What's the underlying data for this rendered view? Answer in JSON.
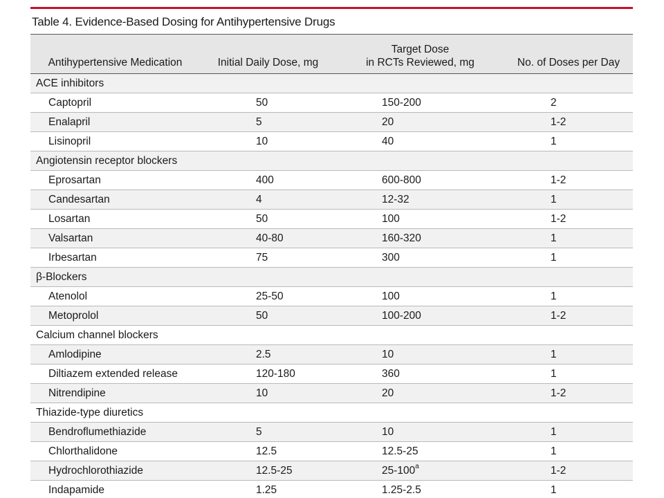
{
  "table": {
    "title": "Table 4. Evidence-Based Dosing for Antihypertensive Drugs",
    "headers": {
      "medication": "Antihypertensive Medication",
      "initial_dose": "Initial Daily Dose, mg",
      "target_dose_line1": "Target Dose",
      "target_dose_line2": "in RCTs Reviewed, mg",
      "doses_per_day": "No. of Doses per Day"
    },
    "categories": [
      {
        "name": "ACE inhibitors",
        "drugs": [
          {
            "name": "Captopril",
            "initial": "50",
            "target": "150-200",
            "footnote": "",
            "doses": "2"
          },
          {
            "name": "Enalapril",
            "initial": "5",
            "target": "20",
            "footnote": "",
            "doses": "1-2"
          },
          {
            "name": "Lisinopril",
            "initial": "10",
            "target": "40",
            "footnote": "",
            "doses": "1"
          }
        ]
      },
      {
        "name": "Angiotensin receptor blockers",
        "drugs": [
          {
            "name": "Eprosartan",
            "initial": "400",
            "target": "600-800",
            "footnote": "",
            "doses": "1-2"
          },
          {
            "name": "Candesartan",
            "initial": "4",
            "target": "12-32",
            "footnote": "",
            "doses": "1"
          },
          {
            "name": "Losartan",
            "initial": "50",
            "target": "100",
            "footnote": "",
            "doses": "1-2"
          },
          {
            "name": "Valsartan",
            "initial": "40-80",
            "target": "160-320",
            "footnote": "",
            "doses": "1"
          },
          {
            "name": "Irbesartan",
            "initial": "75",
            "target": "300",
            "footnote": "",
            "doses": "1"
          }
        ]
      },
      {
        "name": "β-Blockers",
        "drugs": [
          {
            "name": "Atenolol",
            "initial": "25-50",
            "target": "100",
            "footnote": "",
            "doses": "1"
          },
          {
            "name": "Metoprolol",
            "initial": "50",
            "target": "100-200",
            "footnote": "",
            "doses": "1-2"
          }
        ]
      },
      {
        "name": "Calcium channel blockers",
        "drugs": [
          {
            "name": "Amlodipine",
            "initial": "2.5",
            "target": "10",
            "footnote": "",
            "doses": "1"
          },
          {
            "name": "Diltiazem extended release",
            "initial": "120-180",
            "target": "360",
            "footnote": "",
            "doses": "1"
          },
          {
            "name": "Nitrendipine",
            "initial": "10",
            "target": "20",
            "footnote": "",
            "doses": "1-2"
          }
        ]
      },
      {
        "name": "Thiazide-type diuretics",
        "drugs": [
          {
            "name": "Bendroflumethiazide",
            "initial": "5",
            "target": "10",
            "footnote": "",
            "doses": "1"
          },
          {
            "name": "Chlorthalidone",
            "initial": "12.5",
            "target": "12.5-25",
            "footnote": "",
            "doses": "1"
          },
          {
            "name": "Hydrochlorothiazide",
            "initial": "12.5-25",
            "target": "25-100",
            "footnote": "a",
            "doses": "1-2"
          },
          {
            "name": "Indapamide",
            "initial": "1.25",
            "target": "1.25-2.5",
            "footnote": "",
            "doses": "1"
          }
        ]
      }
    ]
  },
  "colors": {
    "accent_rule": "#c8102e",
    "header_bg": "#e6e6e6",
    "alt_row_bg": "#f1f1f1"
  }
}
